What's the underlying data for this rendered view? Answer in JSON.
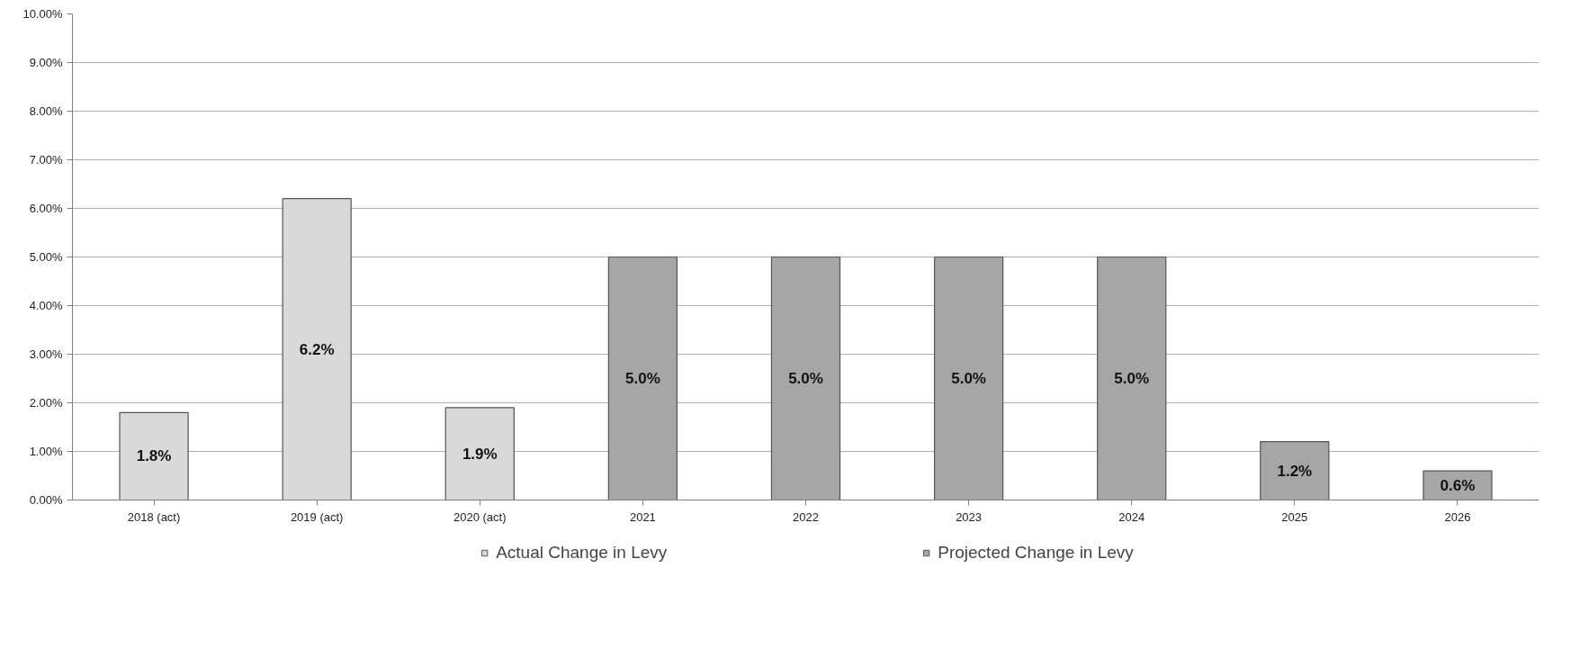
{
  "chart_data": {
    "type": "bar",
    "categories": [
      "2018 (act)",
      "2019 (act)",
      "2020 (act)",
      "2021",
      "2022",
      "2023",
      "2024",
      "2025",
      "2026"
    ],
    "series": [
      {
        "name": "Actual Change in Levy",
        "color": "#d9d9d9",
        "values": [
          1.8,
          6.2,
          1.9,
          null,
          null,
          null,
          null,
          null,
          null
        ],
        "value_labels": [
          "1.8%",
          "6.2%",
          "1.9%",
          null,
          null,
          null,
          null,
          null,
          null
        ]
      },
      {
        "name": "Projected Change in Levy",
        "color": "#a6a6a6",
        "values": [
          null,
          null,
          null,
          5.0,
          5.0,
          5.0,
          5.0,
          1.2,
          0.6
        ],
        "value_labels": [
          null,
          null,
          null,
          "5.0%",
          "5.0%",
          "5.0%",
          "5.0%",
          "1.2%",
          "0.6%"
        ]
      }
    ],
    "ylim": [
      0,
      10
    ],
    "yticks": [
      {
        "value": 0,
        "label": "0.00%"
      },
      {
        "value": 1,
        "label": "1.00%"
      },
      {
        "value": 2,
        "label": "2.00%"
      },
      {
        "value": 3,
        "label": "3.00%"
      },
      {
        "value": 4,
        "label": "4.00%"
      },
      {
        "value": 5,
        "label": "5.00%"
      },
      {
        "value": 6,
        "label": "6.00%"
      },
      {
        "value": 7,
        "label": "7.00%"
      },
      {
        "value": 8,
        "label": "8.00%"
      },
      {
        "value": 9,
        "label": "9.00%"
      },
      {
        "value": 10,
        "label": "10.00%"
      }
    ],
    "grid": "y",
    "legend": "bottom"
  }
}
